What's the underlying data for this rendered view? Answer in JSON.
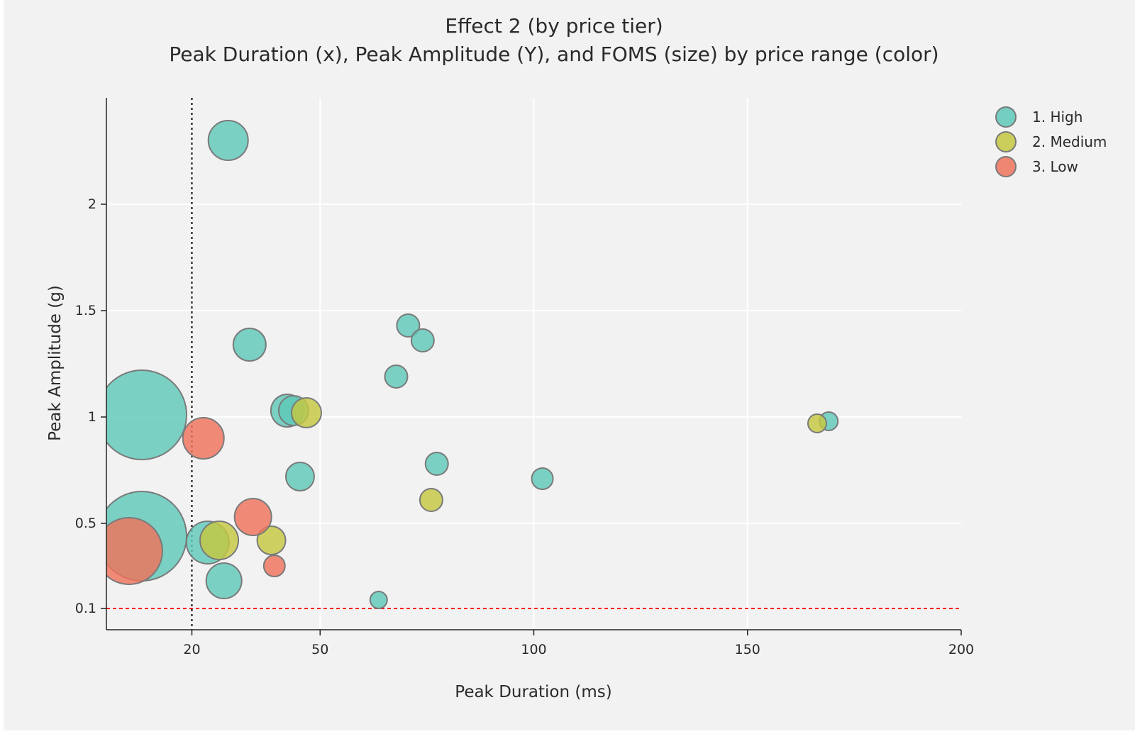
{
  "chart_data": {
    "type": "scatter",
    "title": "Effect 2 (by price tier)",
    "subtitle": "Peak Duration (x), Peak Amplitude (Y), and FOMS (size) by price range (color)",
    "xlabel": "Peak Duration (ms)",
    "ylabel": "Peak Amplitude (g)",
    "xlim": [
      0,
      200
    ],
    "ylim": [
      0,
      2.5
    ],
    "xticks": [
      20,
      50,
      100,
      150,
      200
    ],
    "yticks": [
      0.1,
      0.5,
      1,
      1.5,
      2
    ],
    "grid": true,
    "legend_position": "top-right",
    "reference_lines": [
      {
        "axis": "x",
        "value": 20,
        "style": "dotted",
        "color": "#000000"
      },
      {
        "axis": "y",
        "value": 0.1,
        "style": "dashed",
        "color": "#ff0000"
      }
    ],
    "series": [
      {
        "name": "1. High",
        "color": "#5ec8b8",
        "points": [
          {
            "x": 8.3,
            "y": 1.01,
            "size": 126
          },
          {
            "x": 8.3,
            "y": 0.44,
            "size": 126
          },
          {
            "x": 23.7,
            "y": 0.41,
            "size": 60
          },
          {
            "x": 27.5,
            "y": 0.23,
            "size": 50
          },
          {
            "x": 28.5,
            "y": 2.3,
            "size": 56
          },
          {
            "x": 33.5,
            "y": 1.34,
            "size": 46
          },
          {
            "x": 42.3,
            "y": 1.03,
            "size": 46
          },
          {
            "x": 43.8,
            "y": 1.03,
            "size": 42
          },
          {
            "x": 45.3,
            "y": 0.72,
            "size": 40
          },
          {
            "x": 63.7,
            "y": 0.14,
            "size": 24
          },
          {
            "x": 67.8,
            "y": 1.19,
            "size": 32
          },
          {
            "x": 70.6,
            "y": 1.43,
            "size": 32
          },
          {
            "x": 74.0,
            "y": 1.36,
            "size": 32
          },
          {
            "x": 77.3,
            "y": 0.78,
            "size": 32
          },
          {
            "x": 102.0,
            "y": 0.71,
            "size": 30
          },
          {
            "x": 169.0,
            "y": 0.98,
            "size": 26
          }
        ]
      },
      {
        "name": "2. Medium",
        "color": "#c4c840",
        "points": [
          {
            "x": 26.4,
            "y": 0.42,
            "size": 54
          },
          {
            "x": 38.6,
            "y": 0.42,
            "size": 40
          },
          {
            "x": 46.8,
            "y": 1.02,
            "size": 42
          },
          {
            "x": 76.0,
            "y": 0.61,
            "size": 32
          },
          {
            "x": 166.3,
            "y": 0.97,
            "size": 26
          }
        ]
      },
      {
        "name": "3. Low",
        "color": "#ef735c",
        "points": [
          {
            "x": 5.3,
            "y": 0.37,
            "size": 94
          },
          {
            "x": 22.7,
            "y": 0.9,
            "size": 58
          },
          {
            "x": 34.3,
            "y": 0.53,
            "size": 52
          },
          {
            "x": 39.3,
            "y": 0.3,
            "size": 30
          }
        ]
      }
    ]
  }
}
